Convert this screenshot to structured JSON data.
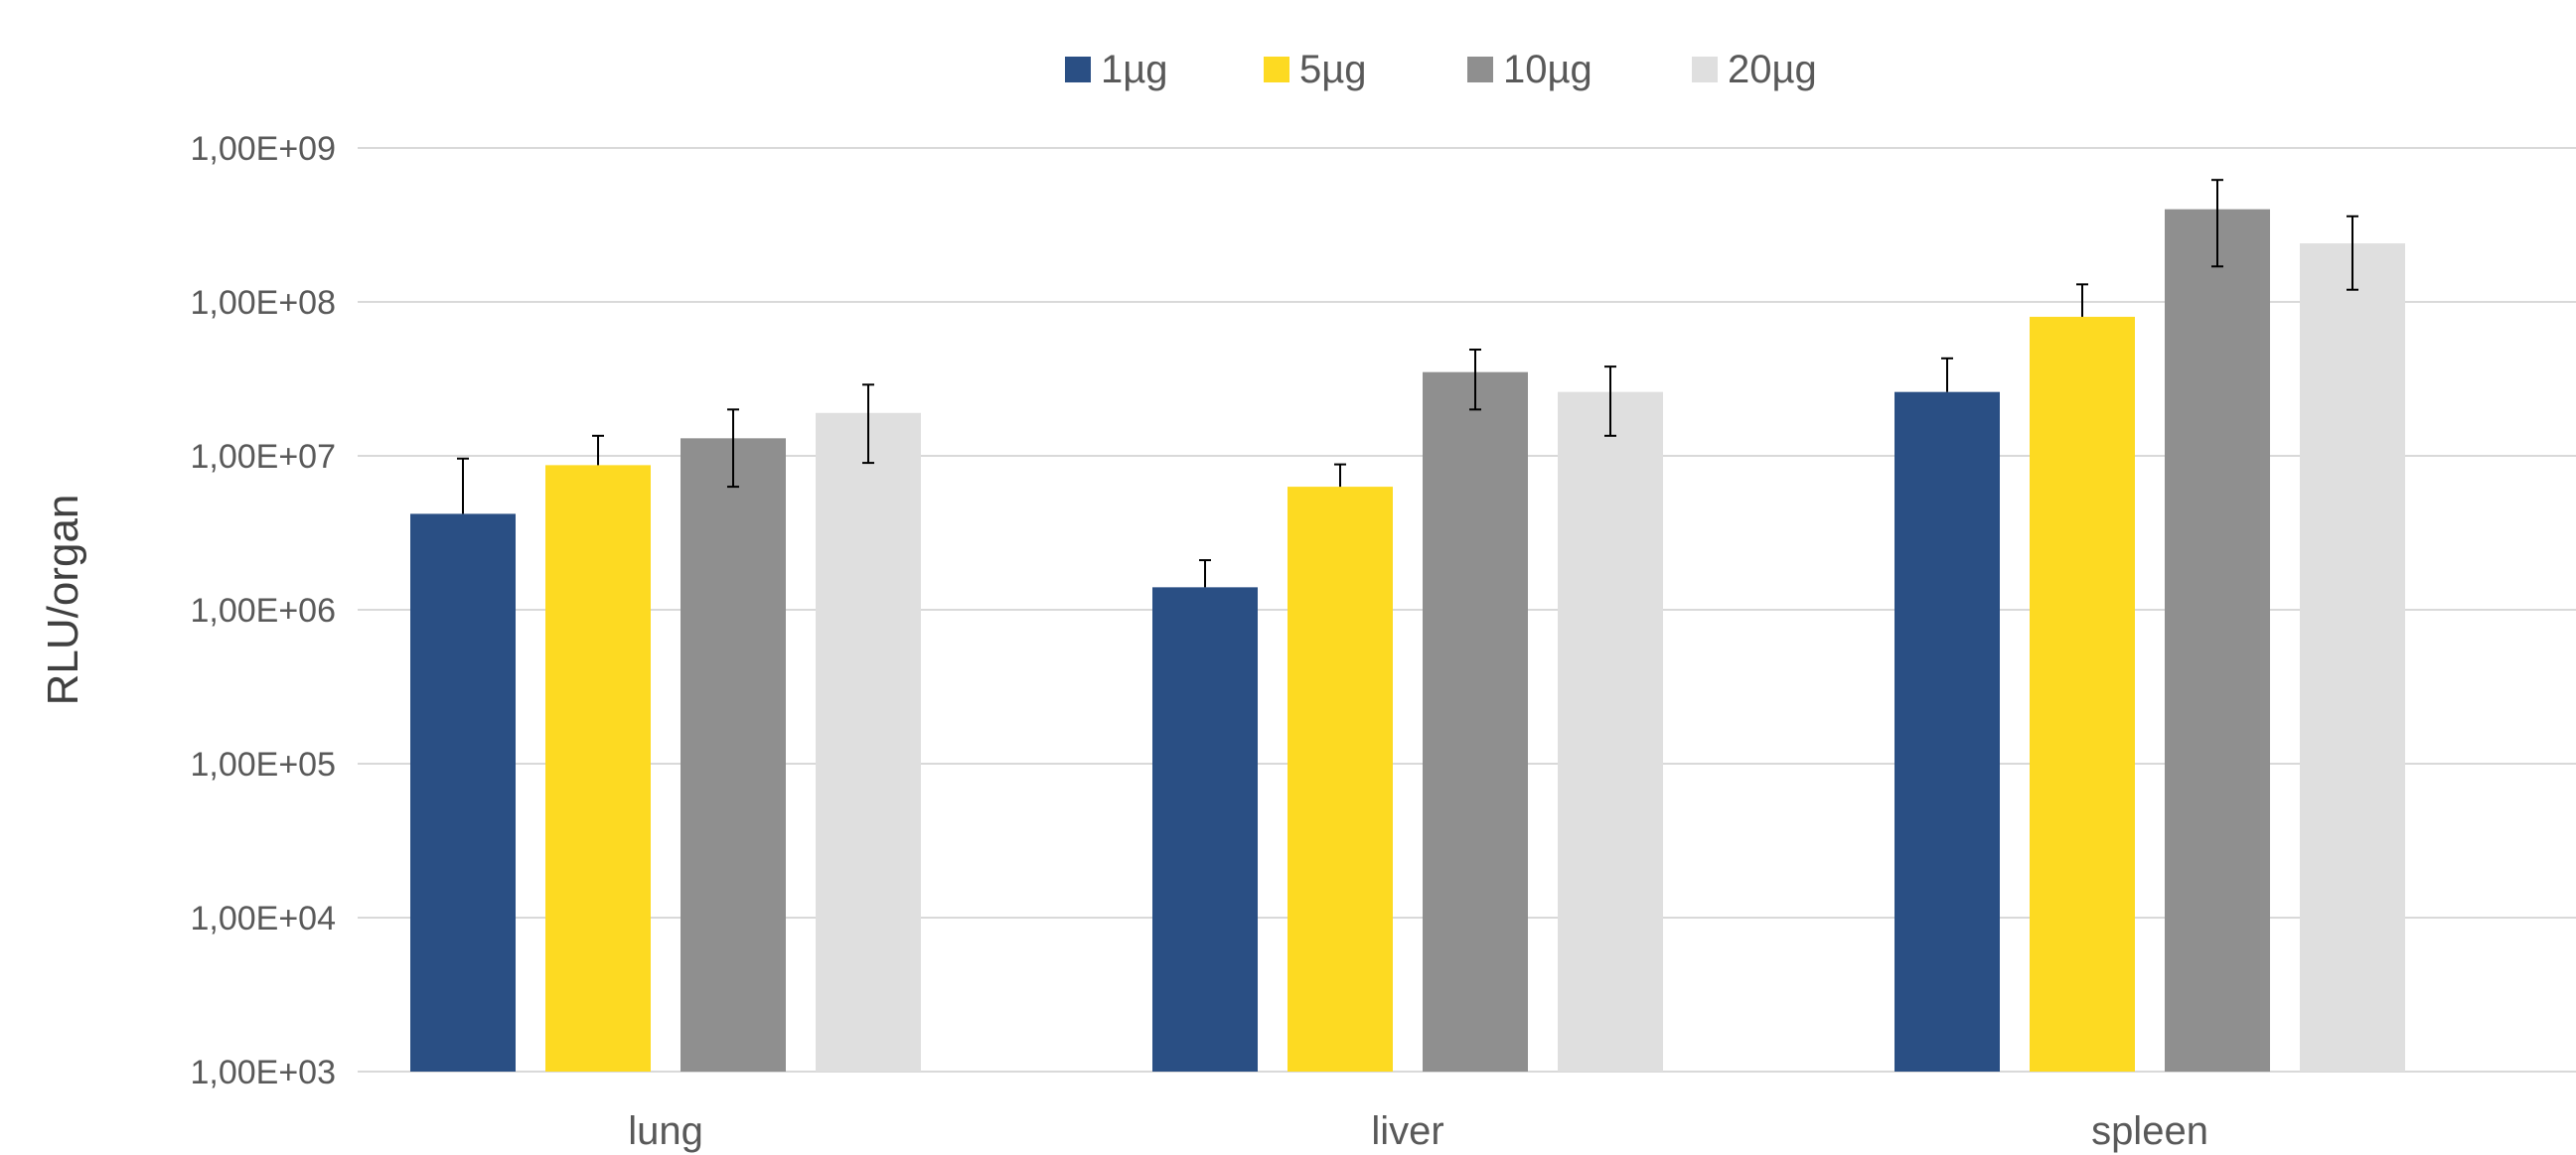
{
  "chart_data": {
    "type": "bar",
    "ylabel": "RLU/organ",
    "yscale": "log",
    "ylim": [
      1000,
      1000000000
    ],
    "yticks": [
      {
        "value": 1000000000,
        "label": "1,00E+09"
      },
      {
        "value": 100000000,
        "label": "1,00E+08"
      },
      {
        "value": 10000000,
        "label": "1,00E+07"
      },
      {
        "value": 1000000,
        "label": "1,00E+06"
      },
      {
        "value": 100000,
        "label": "1,00E+05"
      },
      {
        "value": 10000,
        "label": "1,00E+04"
      },
      {
        "value": 1000,
        "label": "1,00E+03"
      }
    ],
    "categories": [
      "lung",
      "liver",
      "spleen"
    ],
    "grid": true,
    "legend_position": "top",
    "series": [
      {
        "name": "1µg",
        "color": "#2A4F84",
        "values": [
          4200000,
          1400000,
          26000000
        ],
        "error_upper": [
          9600000,
          2100000,
          43000000
        ],
        "error_lower": [
          4200000,
          1400000,
          26000000
        ]
      },
      {
        "name": "5µg",
        "color": "#FDDA22",
        "values": [
          8700000,
          6300000,
          80000000
        ],
        "error_upper": [
          13500000,
          8800000,
          130000000
        ],
        "error_lower": [
          8700000,
          6300000,
          80000000
        ]
      },
      {
        "name": "10µg",
        "color": "#8F8F8F",
        "values": [
          13000000,
          35000000,
          400000000
        ],
        "error_upper": [
          20000000,
          49000000,
          620000000
        ],
        "error_lower": [
          6300000,
          20000000,
          170000000
        ]
      },
      {
        "name": "20µg",
        "color": "#DFDFDF",
        "values": [
          19000000,
          26000000,
          240000000
        ],
        "error_upper": [
          29000000,
          38000000,
          360000000
        ],
        "error_lower": [
          9000000,
          13500000,
          120000000
        ]
      }
    ]
  }
}
